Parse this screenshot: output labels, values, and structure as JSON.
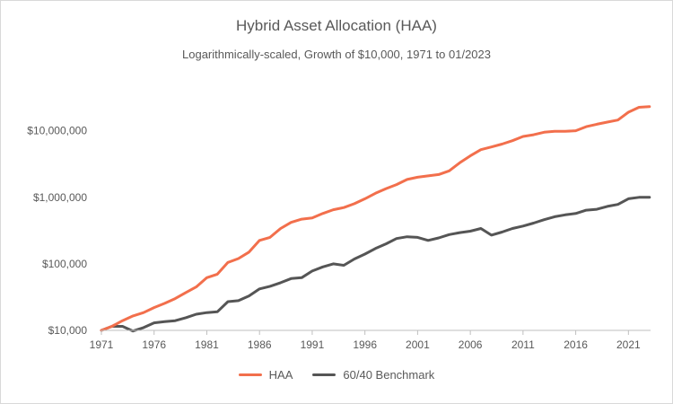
{
  "chart_data": {
    "type": "line",
    "title": "Hybrid Asset Allocation (HAA)",
    "subtitle": "Logarithmically-scaled, Growth of $10,000, 1971 to 01/2023",
    "xlabel": "",
    "ylabel": "",
    "y_scale": "log",
    "xlim": [
      1971,
      2023.1
    ],
    "ylim": [
      10000,
      40000000
    ],
    "x_ticks": [
      1971,
      1976,
      1981,
      1986,
      1991,
      1996,
      2001,
      2006,
      2011,
      2016,
      2021
    ],
    "x_tick_labels": [
      "1971",
      "1976",
      "1981",
      "1986",
      "1991",
      "1996",
      "2001",
      "2006",
      "2011",
      "2016",
      "2021"
    ],
    "y_ticks": [
      10000,
      100000,
      1000000,
      10000000
    ],
    "y_tick_labels": [
      "$10,000",
      "$100,000",
      "$1,000,000",
      "$10,000,000"
    ],
    "grid": false,
    "legend_position": "bottom",
    "series": [
      {
        "name": "HAA",
        "color": "#f26f4c",
        "x": [
          1971,
          1972,
          1973,
          1974,
          1975,
          1976,
          1977,
          1978,
          1979,
          1980,
          1981,
          1982,
          1983,
          1984,
          1985,
          1986,
          1987,
          1988,
          1989,
          1990,
          1991,
          1992,
          1993,
          1994,
          1995,
          1996,
          1997,
          1998,
          1999,
          2000,
          2001,
          2002,
          2003,
          2004,
          2005,
          2006,
          2007,
          2008,
          2009,
          2010,
          2011,
          2012,
          2013,
          2014,
          2015,
          2016,
          2017,
          2018,
          2019,
          2020,
          2021,
          2022,
          2023
        ],
        "y": [
          10000,
          11500,
          14000,
          16500,
          18500,
          22000,
          25500,
          30000,
          37000,
          45000,
          62000,
          70000,
          105000,
          120000,
          150000,
          225000,
          250000,
          340000,
          420000,
          470000,
          490000,
          570000,
          650000,
          700000,
          800000,
          950000,
          1150000,
          1350000,
          1550000,
          1850000,
          2000000,
          2100000,
          2200000,
          2500000,
          3300000,
          4200000,
          5200000,
          5700000,
          6300000,
          7100000,
          8200000,
          8700000,
          9500000,
          9800000,
          9800000,
          10000000,
          11500000,
          12500000,
          13500000,
          14500000,
          19000000,
          22500000,
          23000000
        ]
      },
      {
        "name": "60/40 Benchmark",
        "color": "#555555",
        "x": [
          1971,
          1972,
          1973,
          1974,
          1975,
          1976,
          1977,
          1978,
          1979,
          1980,
          1981,
          1982,
          1983,
          1984,
          1985,
          1986,
          1987,
          1988,
          1989,
          1990,
          1991,
          1992,
          1993,
          1994,
          1995,
          1996,
          1997,
          1998,
          1999,
          2000,
          2001,
          2002,
          2003,
          2004,
          2005,
          2006,
          2007,
          2008,
          2009,
          2010,
          2011,
          2012,
          2013,
          2014,
          2015,
          2016,
          2017,
          2018,
          2019,
          2020,
          2021,
          2022,
          2023
        ],
        "y": [
          10000,
          11500,
          11500,
          9800,
          11000,
          13000,
          13500,
          14000,
          15500,
          17500,
          18500,
          19000,
          27000,
          28000,
          33000,
          42000,
          46000,
          52000,
          60000,
          62000,
          78000,
          90000,
          100000,
          95000,
          118000,
          140000,
          170000,
          200000,
          240000,
          255000,
          250000,
          225000,
          245000,
          275000,
          295000,
          310000,
          340000,
          270000,
          300000,
          340000,
          370000,
          410000,
          460000,
          510000,
          545000,
          570000,
          640000,
          660000,
          730000,
          780000,
          950000,
          1000000,
          1000000
        ]
      }
    ]
  }
}
